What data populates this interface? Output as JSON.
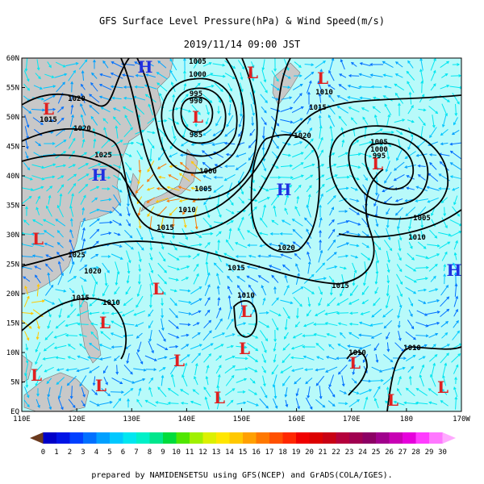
{
  "title": "GFS Surface Level Pressure(hPa) & Wind Speed(m/s)",
  "valid_time": "2019/11/14 09:00 JST",
  "lat_labels": [
    "EQ",
    "5N",
    "10N",
    "15N",
    "20N",
    "25N",
    "30N",
    "35N",
    "40N",
    "45N",
    "50N",
    "55N",
    "60N"
  ],
  "lon_labels": [
    "110E",
    "120E",
    "130E",
    "140E",
    "150E",
    "160E",
    "170E",
    "180",
    "170W"
  ],
  "pressure_centers": [
    "H",
    "L",
    "L",
    "L",
    "L",
    "H",
    "H",
    "L",
    "L",
    "H",
    "L",
    "L",
    "L",
    "L",
    "L",
    "L",
    "L",
    "L",
    "L",
    "L",
    "L"
  ],
  "isobar_labels": [
    "1005",
    "1000",
    "995",
    "990",
    "985",
    "1020",
    "1015",
    "1020",
    "1025",
    "1000",
    "1005",
    "1010",
    "1015",
    "1010",
    "1015",
    "1020",
    "1005",
    "1000",
    "995",
    "1005",
    "1010",
    "1020",
    "1015",
    "1015",
    "1025",
    "1020",
    "1015",
    "1010",
    "1010",
    "1010",
    "1010"
  ],
  "colorbar": {
    "labels": [
      0,
      1,
      2,
      3,
      4,
      5,
      6,
      7,
      8,
      9,
      10,
      11,
      12,
      13,
      14,
      15,
      16,
      17,
      18,
      19,
      20,
      21,
      22,
      23,
      24,
      25,
      26,
      27,
      28,
      29,
      30
    ],
    "colors": [
      "#6b3a1e",
      "#0000c8",
      "#0014e6",
      "#0040ff",
      "#0070ff",
      "#00a0ff",
      "#00c8ff",
      "#00e6f0",
      "#00f0c8",
      "#00e68c",
      "#00dc3c",
      "#50e600",
      "#a0f000",
      "#dcf000",
      "#ffe600",
      "#ffc800",
      "#ffa000",
      "#ff7800",
      "#ff5000",
      "#ff2800",
      "#f00000",
      "#dc0000",
      "#c80014",
      "#b4003c",
      "#a00050",
      "#8c0064",
      "#a0008c",
      "#c800b4",
      "#e600dc",
      "#ff3cff",
      "#ff78ff",
      "#ffaaff"
    ]
  },
  "footer": "prepared by NAMIDENSETSU using GFS(NCEP) and GrADS(COLA/IGES)."
}
